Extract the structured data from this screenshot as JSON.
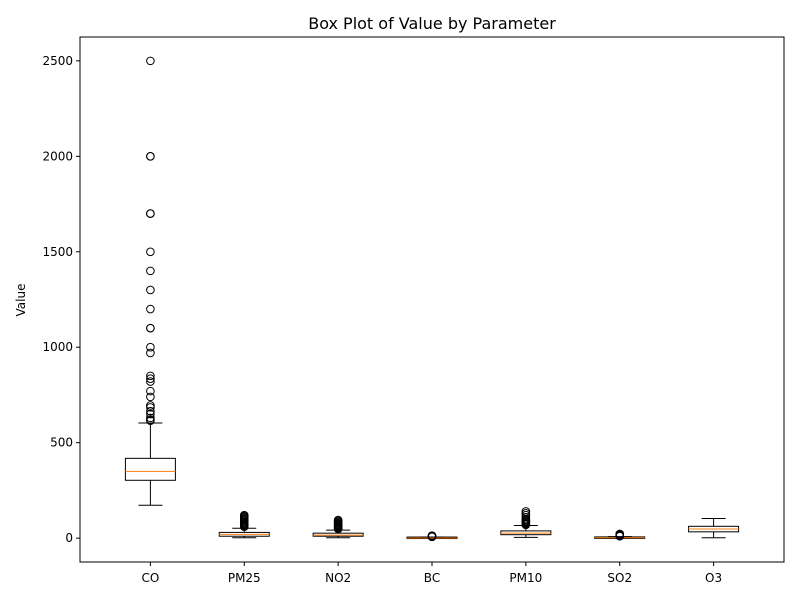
{
  "chart_data": {
    "type": "box",
    "title": "Box Plot of Value by Parameter",
    "xlabel": "",
    "ylabel": "Value",
    "ylim": [
      -125,
      2625
    ],
    "yticks": [
      0,
      500,
      1000,
      1500,
      2000,
      2500
    ],
    "grid": false,
    "colors": {
      "median": "#ff7f0e",
      "box": "#000000",
      "outlier": "#000000"
    },
    "categories": [
      "CO",
      "PM25",
      "NO2",
      "BC",
      "PM10",
      "SO2",
      "O3"
    ],
    "boxes": [
      {
        "category": "CO",
        "whisker_low": 172,
        "q1": 303,
        "median": 350,
        "q3": 418,
        "whisker_high": 603,
        "outliers": [
          2500,
          2000,
          2000,
          1700,
          1700,
          1500,
          1400,
          1300,
          1200,
          1100,
          1100,
          1000,
          970,
          850,
          835,
          820,
          770,
          740,
          695,
          685,
          665,
          650,
          630,
          620,
          615
        ]
      },
      {
        "category": "PM25",
        "whisker_low": 2,
        "q1": 10,
        "median": 20,
        "q3": 30,
        "whisker_high": 52,
        "outliers": [
          60,
          65,
          70,
          75,
          80,
          85,
          90,
          95,
          100,
          105,
          110,
          115,
          120
        ]
      },
      {
        "category": "NO2",
        "whisker_low": 2,
        "q1": 10,
        "median": 16,
        "q3": 26,
        "whisker_high": 42,
        "outliers": [
          48,
          52,
          56,
          60,
          64,
          68,
          72,
          76,
          80,
          85,
          90,
          95
        ]
      },
      {
        "category": "BC",
        "whisker_low": 0,
        "q1": 0.5,
        "median": 1,
        "q3": 3,
        "whisker_high": 6,
        "outliers": [
          7,
          8,
          9,
          10,
          11,
          12,
          13
        ]
      },
      {
        "category": "PM10",
        "whisker_low": 4,
        "q1": 18,
        "median": 26,
        "q3": 38,
        "whisker_high": 66,
        "outliers": [
          70,
          75,
          80,
          85,
          90,
          95,
          100,
          110,
          120,
          130,
          140
        ]
      },
      {
        "category": "SO2",
        "whisker_low": 0,
        "q1": 1,
        "median": 2,
        "q3": 4,
        "whisker_high": 8,
        "outliers": [
          10,
          12,
          14,
          16,
          18,
          20,
          22
        ]
      },
      {
        "category": "O3",
        "whisker_low": 2,
        "q1": 33,
        "median": 48,
        "q3": 62,
        "whisker_high": 103,
        "outliers": []
      }
    ]
  }
}
